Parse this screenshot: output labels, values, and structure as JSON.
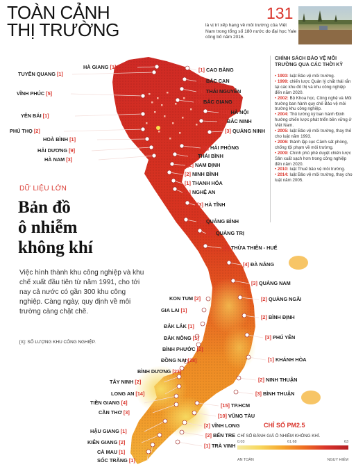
{
  "header": {
    "brand_line1": "TOÀN CẢNH",
    "brand_line2": "THỊ TRƯỜNG",
    "rank_number": "131",
    "rank_desc": "là vị trí xếp hạng về môi trường của Việt Nam trong tổng số 180 nước do đại học Yale công bố năm 2016."
  },
  "sidebar": {
    "title": "CHÍNH SÁCH BẢO VỆ MÔI TRƯỜNG QUA CÁC THỜI KỲ",
    "items": [
      {
        "year": "1993:",
        "text": "luật Bảo vệ môi trường."
      },
      {
        "year": "1999:",
        "text": "chiến lược Quản lý chất thải rắn tại các khu đô thị và khu công nghiệp đến năm 2020."
      },
      {
        "year": "2002:",
        "text": "Bộ Khoa học, Công nghệ và Môi trường ban hành quy chế Bảo vệ môi trường khu công nghiệp."
      },
      {
        "year": "2004:",
        "text": "Thủ tướng ký ban hành Định hướng chiến lược phát triển bền vững ở Việt Nam."
      },
      {
        "year": "2005:",
        "text": "luật Bảo vệ môi trường, thay thế cho luật năm 1993."
      },
      {
        "year": "2006:",
        "text": "thành lập cục Cảnh sát phòng, chống tội phạm về môi trường."
      },
      {
        "year": "2009:",
        "text": "Chính phủ phê duyệt chiến lược Sản xuất sạch hơn trong công nghiệp đến năm 2020."
      },
      {
        "year": "2010:",
        "text": "luật Thuế bảo vệ môi trường."
      },
      {
        "year": "2014:",
        "text": "luật Bảo vệ môi trường, thay cho luật năm 2005."
      }
    ]
  },
  "article": {
    "tag": "DỮ LIỆU LỚN",
    "title_line1": "Bản đồ",
    "title_line2": "ô nhiễm",
    "title_line3": "không khí",
    "intro": "Việc hình thành khu công nghiệp và khu chế xuất đầu tiên từ năm 1991, cho tới nay cả nước có gần 300 khu công nghiệp. Càng ngày, quy định về môi trường càng chặt chẽ.",
    "footnote": "[X]: SỐ LƯỢNG KHU CÔNG NGHIỆP."
  },
  "legend": {
    "title": "CHỈ SỐ PM2.5",
    "subtitle": "CHỈ SỐ ĐÁNH GIÁ Ô NHIỄM KHÔNG KHÍ.",
    "ticks": [
      "0.03",
      "61.68",
      "63"
    ],
    "low": "AN TOÀN",
    "high": "NGUY HIỂM"
  },
  "colors": {
    "accent": "#d9342b",
    "land_north": "#cf2a25",
    "land_central": "#e3561f",
    "land_south": "#f09a26",
    "land_delta": "#f6c64b"
  },
  "provinces_left": [
    {
      "name": "HÀ GIANG",
      "count": "[1]"
    },
    {
      "name": "TUYÊN QUANG",
      "count": "[1]"
    },
    {
      "name": "VĨNH PHÚC",
      "count": "[5]"
    },
    {
      "name": "YÊN BÁI",
      "count": "[1]"
    },
    {
      "name": "PHÚ THỌ",
      "count": "[2]"
    },
    {
      "name": "HOÀ BÌNH",
      "count": "[1]"
    },
    {
      "name": "HẢI DƯƠNG",
      "count": "[9]"
    },
    {
      "name": "HÀ NAM",
      "count": "[3]"
    },
    {
      "name": "KON TUM",
      "count": "[2]"
    },
    {
      "name": "GIA LAI",
      "count": "[1]"
    },
    {
      "name": "ĐẮK LẮK",
      "count": "[1]"
    },
    {
      "name": "ĐẮK NÔNG",
      "count": "[1]"
    },
    {
      "name": "BÌNH PHƯỚC",
      "count": "[2]"
    },
    {
      "name": "ĐỒNG NAI",
      "count": "[28]"
    },
    {
      "name": "BÌNH DƯƠNG",
      "count": "[23]"
    },
    {
      "name": "TÂY NINH",
      "count": "[2]"
    },
    {
      "name": "LONG AN",
      "count": "[14]"
    },
    {
      "name": "TIỀN GIANG",
      "count": "[4]"
    },
    {
      "name": "CẦN THƠ",
      "count": "[3]"
    },
    {
      "name": "HẬU GIANG",
      "count": "[1]"
    },
    {
      "name": "KIÊN GIANG",
      "count": "[2]"
    },
    {
      "name": "CÀ MAU",
      "count": "[1]"
    },
    {
      "name": "SÓC TRĂNG",
      "count": "[1]"
    }
  ],
  "provinces_right": [
    {
      "name": "CAO BẰNG",
      "count": "[1]"
    },
    {
      "name": "BẮC CẠN",
      "count": "[1]"
    },
    {
      "name": "THÁI NGUYÊN",
      "count": "[1]"
    },
    {
      "name": "BẮC GIANG",
      "count": "[3]"
    },
    {
      "name": "HÀ NỘI",
      "count": "[11]"
    },
    {
      "name": "BẮC NINH",
      "count": "[9]"
    },
    {
      "name": "QUẢNG NINH",
      "count": "[3]"
    },
    {
      "name": "HẢI PHÒNG",
      "count": "[6]"
    },
    {
      "name": "THÁI BÌNH",
      "count": "[2]"
    },
    {
      "name": "NAM ĐỊNH",
      "count": "[2]"
    },
    {
      "name": "NINH BÌNH",
      "count": "[2]"
    },
    {
      "name": "THANH HÓA",
      "count": "[1]"
    },
    {
      "name": "NGHỆ AN",
      "count": "[1]"
    },
    {
      "name": "HÀ TĨNH",
      "count": "[3]"
    },
    {
      "name": "QUẢNG BÌNH",
      "count": "[2]"
    },
    {
      "name": "QUẢNG TRỊ",
      "count": "[2]"
    },
    {
      "name": "THỪA THIÊN - HUẾ",
      "count": "[2]"
    },
    {
      "name": "ĐÀ NẴNG",
      "count": "[4]"
    },
    {
      "name": "QUẢNG NAM",
      "count": "[3]"
    },
    {
      "name": "QUẢNG NGÃI",
      "count": "[2]"
    },
    {
      "name": "BÌNH ĐỊNH",
      "count": "[2]"
    },
    {
      "name": "PHÚ YÊN",
      "count": "[3]"
    },
    {
      "name": "KHÁNH HÒA",
      "count": "[1]"
    },
    {
      "name": "NINH THUẬN",
      "count": "[2]"
    },
    {
      "name": "BÌNH THUẬN",
      "count": "[3]"
    },
    {
      "name": "TP.HCM",
      "count": "[15]"
    },
    {
      "name": "VŨNG TÀU",
      "count": "[10]"
    },
    {
      "name": "VĨNH LONG",
      "count": "[2]"
    },
    {
      "name": "BẾN TRE",
      "count": "[2]"
    },
    {
      "name": "TRÀ VINH",
      "count": "[1]"
    }
  ]
}
